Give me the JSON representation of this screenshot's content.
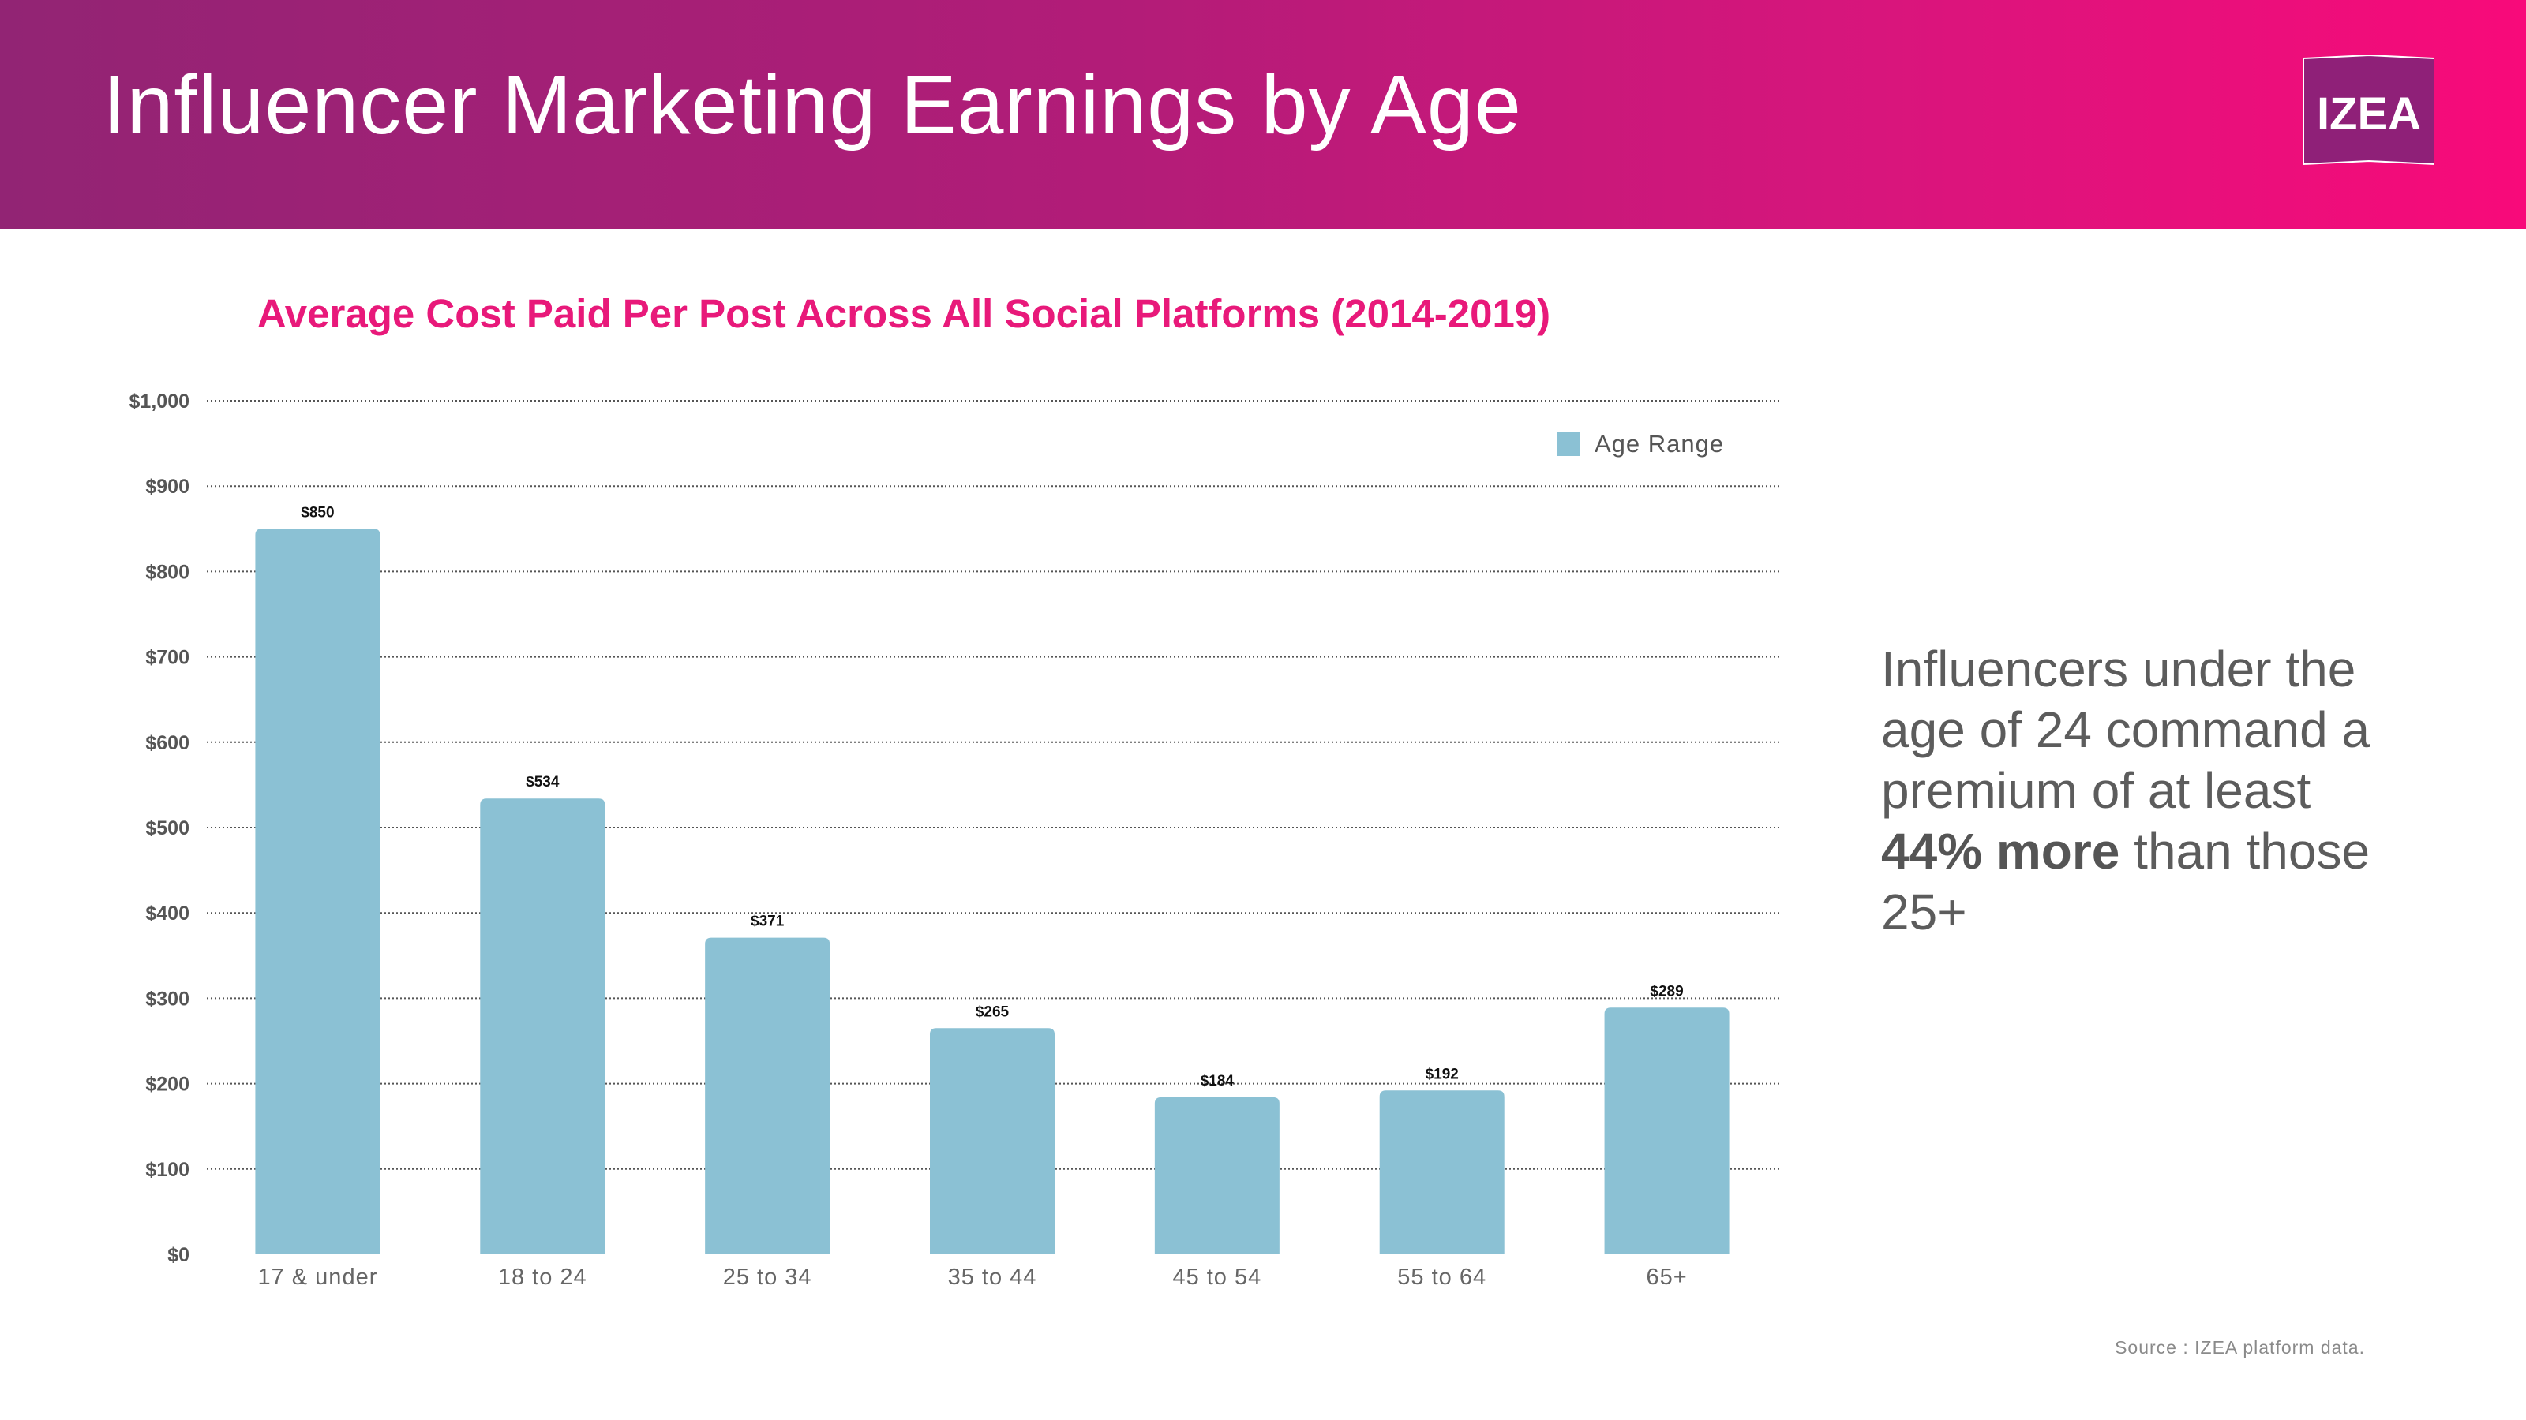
{
  "header": {
    "title": "Influencer Marketing Earnings by Age",
    "logo_text": "IZEA"
  },
  "colors": {
    "header_start": "#922474",
    "header_end": "#f80a7a",
    "bar": "#8bc1d4",
    "chart_title": "#e8197a",
    "logo_bg": "#8f2078"
  },
  "chart_data": {
    "type": "bar",
    "title": "Average Cost Paid Per Post Across All Social Platforms (2014-2019)",
    "categories": [
      "17 & under",
      "18 to 24",
      "25 to 34",
      "35 to 44",
      "45 to 54",
      "55 to 64",
      "65+"
    ],
    "series": [
      {
        "name": "Age Range",
        "values": [
          850,
          534,
          371,
          265,
          184,
          192,
          289
        ]
      }
    ],
    "data_labels": [
      "$850",
      "$534",
      "$371",
      "$265",
      "$184",
      "$192",
      "$289"
    ],
    "y_ticks": [
      "$0",
      "$100",
      "$200",
      "$300",
      "$400",
      "$500",
      "$600",
      "$700",
      "$800",
      "$900",
      "$1,000"
    ],
    "ylim": [
      0,
      1000
    ],
    "xlabel": "",
    "ylabel": "",
    "grid": true,
    "legend_position": "top-right"
  },
  "callout": {
    "text_before": "Influencers under the age of 24 command a premium of at least ",
    "highlight": "44% more",
    "text_after": " than those 25+"
  },
  "source": "Source : IZEA platform data."
}
